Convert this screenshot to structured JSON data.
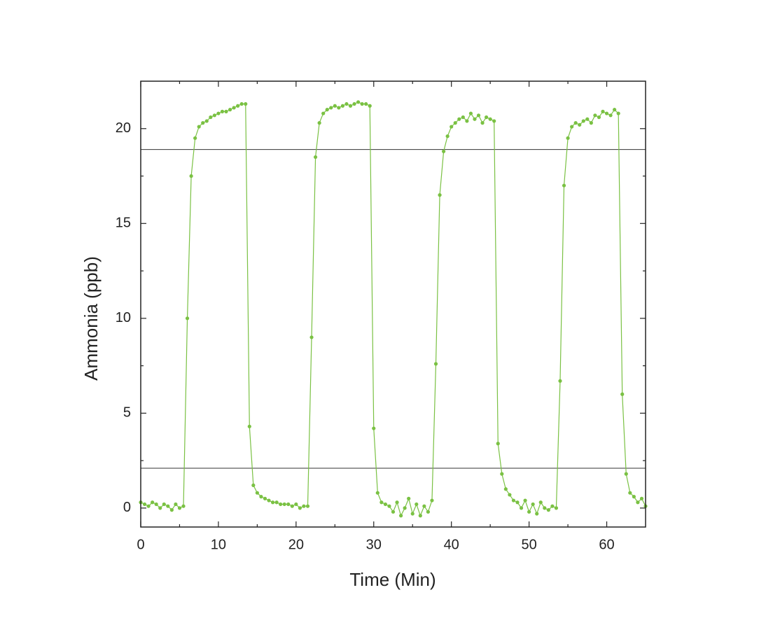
{
  "chart_data": {
    "type": "scatter-line",
    "x_label": "Time (Min)",
    "y_label": "Ammonia (ppb)",
    "xlim": [
      0,
      65
    ],
    "ylim": [
      -1,
      22.5
    ],
    "xticks": [
      0,
      10,
      20,
      30,
      40,
      50,
      60
    ],
    "yticks": [
      0,
      5,
      10,
      15,
      20
    ],
    "xticks_minor": [
      5,
      15,
      25,
      35,
      45,
      55
    ],
    "yticks_minor": [
      2.5,
      7.5,
      12.5,
      17.5
    ],
    "hlines": [
      18.9,
      2.1
    ],
    "series": [
      {
        "color": "#7ac143",
        "x": [
          0,
          0.5,
          1,
          1.5,
          2,
          2.5,
          3,
          3.5,
          4,
          4.5,
          5,
          5.5,
          6,
          6.5,
          7,
          7.5,
          8,
          8.5,
          9,
          9.5,
          10,
          10.5,
          11,
          11.5,
          12,
          12.5,
          13,
          13.5,
          14,
          14.5,
          15,
          15.5,
          16,
          16.5,
          17,
          17.5,
          18,
          18.5,
          19,
          19.5,
          20,
          20.5,
          21,
          21.5,
          22,
          22.5,
          23,
          23.5,
          24,
          24.5,
          25,
          25.5,
          26,
          26.5,
          27,
          27.5,
          28,
          28.5,
          29,
          29.5,
          30,
          30.5,
          31,
          31.5,
          32,
          32.5,
          33,
          33.5,
          34,
          34.5,
          35,
          35.5,
          36,
          36.5,
          37,
          37.5,
          38,
          38.5,
          39,
          39.5,
          40,
          40.5,
          41,
          41.5,
          42,
          42.5,
          43,
          43.5,
          44,
          44.5,
          45,
          45.5,
          46,
          46.5,
          47,
          47.5,
          48,
          48.5,
          49,
          49.5,
          50,
          50.5,
          51,
          51.5,
          52,
          52.5,
          53,
          53.5,
          54,
          54.5,
          55,
          55.5,
          56,
          56.5,
          57,
          57.5,
          58,
          58.5,
          59,
          59.5,
          60,
          60.5,
          61,
          61.5,
          62,
          62.5,
          63,
          63.5,
          64,
          64.5,
          65
        ],
        "values": [
          0.3,
          0.2,
          0.1,
          0.3,
          0.2,
          0.0,
          0.2,
          0.1,
          -0.1,
          0.2,
          0.0,
          0.1,
          10,
          17.5,
          19.5,
          20.1,
          20.3,
          20.4,
          20.6,
          20.7,
          20.8,
          20.9,
          20.9,
          21.0,
          21.1,
          21.2,
          21.3,
          21.3,
          4.3,
          1.2,
          0.8,
          0.6,
          0.5,
          0.4,
          0.3,
          0.3,
          0.2,
          0.2,
          0.2,
          0.1,
          0.2,
          0.0,
          0.1,
          0.1,
          9.0,
          18.5,
          20.3,
          20.8,
          21.0,
          21.1,
          21.2,
          21.1,
          21.2,
          21.3,
          21.2,
          21.3,
          21.4,
          21.3,
          21.3,
          21.2,
          4.2,
          0.8,
          0.3,
          0.2,
          0.1,
          -0.2,
          0.3,
          -0.4,
          0.0,
          0.5,
          -0.3,
          0.2,
          -0.4,
          0.1,
          -0.2,
          0.4,
          7.6,
          16.5,
          18.8,
          19.6,
          20.1,
          20.3,
          20.5,
          20.6,
          20.4,
          20.8,
          20.5,
          20.7,
          20.3,
          20.6,
          20.5,
          20.4,
          3.4,
          1.8,
          1.0,
          0.7,
          0.4,
          0.3,
          0.0,
          0.4,
          -0.2,
          0.2,
          -0.3,
          0.3,
          0.0,
          -0.1,
          0.1,
          0.0,
          6.7,
          17.0,
          19.5,
          20.1,
          20.3,
          20.2,
          20.4,
          20.5,
          20.3,
          20.7,
          20.6,
          20.9,
          20.8,
          20.7,
          21.0,
          20.8,
          6.0,
          1.8,
          0.8,
          0.6,
          0.3,
          0.5,
          0.1
        ]
      }
    ]
  }
}
